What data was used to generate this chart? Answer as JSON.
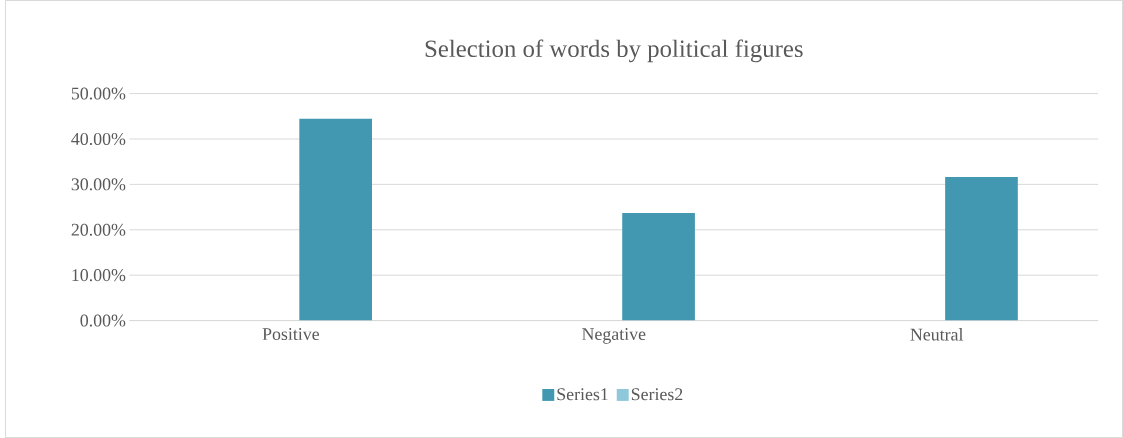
{
  "chart_data": {
    "type": "bar",
    "title": "Selection of words by political figures",
    "categories": [
      "Positive",
      "Negative",
      "Neutral"
    ],
    "series": [
      {
        "name": "Series1",
        "color": "#4298b0",
        "values": [
          44.5,
          23.7,
          31.6
        ]
      },
      {
        "name": "Series2",
        "color": "#8fc8db",
        "values": [
          null,
          null,
          null
        ]
      }
    ],
    "ylim": [
      0,
      50
    ],
    "yticks": [
      {
        "value": 0,
        "label": "0.00%"
      },
      {
        "value": 10,
        "label": "10.00%"
      },
      {
        "value": 20,
        "label": "20.00%"
      },
      {
        "value": 30,
        "label": "30.00%"
      },
      {
        "value": 40,
        "label": "40.00%"
      },
      {
        "value": 50,
        "label": "50.00%"
      }
    ],
    "grid": "y",
    "legend": "bottom"
  }
}
